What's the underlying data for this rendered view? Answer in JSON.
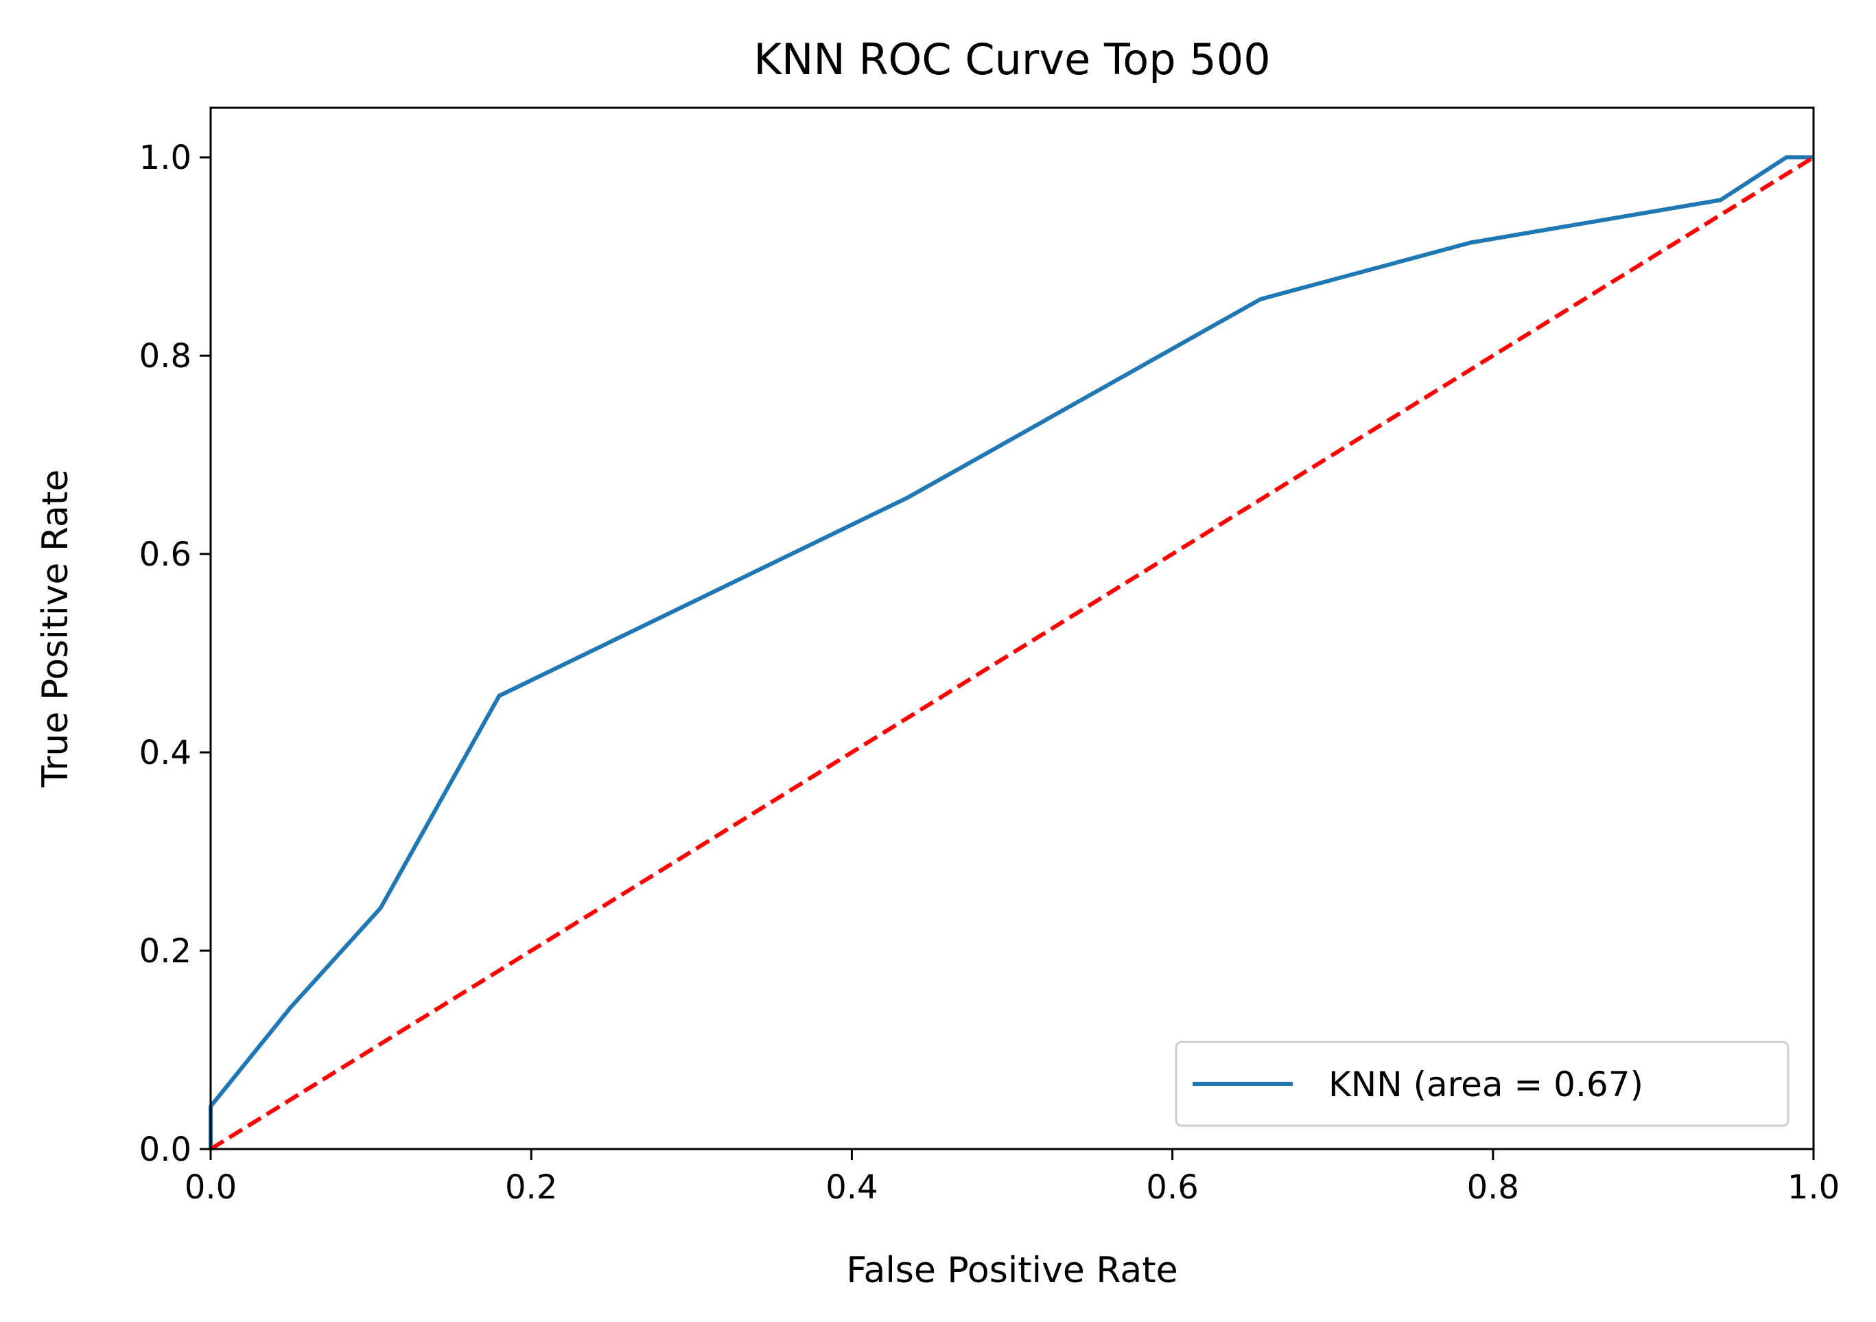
{
  "chart_data": {
    "type": "line",
    "title": "KNN ROC Curve Top 500",
    "xlabel": "False Positive Rate",
    "ylabel": "True Positive Rate",
    "xlim": [
      0.0,
      1.0
    ],
    "ylim": [
      0.0,
      1.05
    ],
    "xticks": [
      0.0,
      0.2,
      0.4,
      0.6,
      0.8,
      1.0
    ],
    "yticks": [
      0.0,
      0.2,
      0.4,
      0.6,
      0.8,
      1.0
    ],
    "xtick_labels": [
      "0.0",
      "0.2",
      "0.4",
      "0.6",
      "0.8",
      "1.0"
    ],
    "ytick_labels": [
      "0.0",
      "0.2",
      "0.4",
      "0.6",
      "0.8",
      "1.0"
    ],
    "grid": false,
    "legend_position": "lower-right",
    "series": [
      {
        "name": "KNN (area = 0.67)",
        "color": "#1f77b4",
        "style": "solid",
        "x": [
          0.0,
          0.0,
          0.05,
          0.106,
          0.18,
          0.435,
          0.655,
          0.786,
          0.942,
          0.983,
          1.0
        ],
        "y": [
          0.0,
          0.043,
          0.143,
          0.243,
          0.457,
          0.657,
          0.857,
          0.914,
          0.957,
          1.0,
          1.0
        ]
      },
      {
        "name": "",
        "color": "#ff0000",
        "style": "dashed",
        "x": [
          0.0,
          1.0
        ],
        "y": [
          0.0,
          1.0
        ]
      }
    ]
  }
}
